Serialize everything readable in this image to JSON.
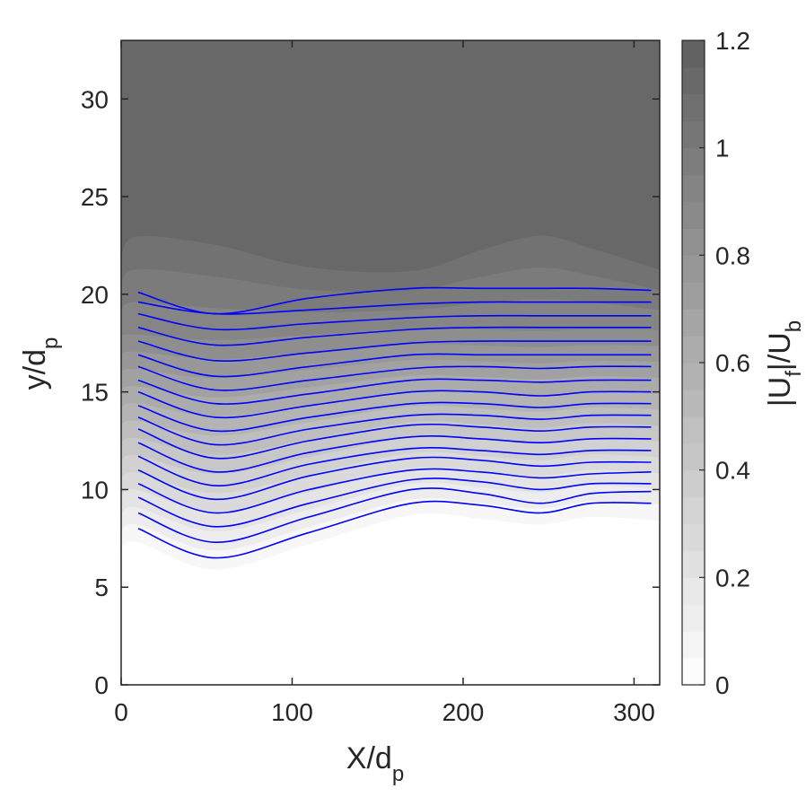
{
  "chart_data": {
    "type": "contour",
    "xlabel": {
      "main": "X/d",
      "sub": "p"
    },
    "ylabel": {
      "main": "y/d",
      "sub": "p"
    },
    "colorbar_label": {
      "pre": "|U",
      "sub1": "f",
      "mid": "|/U",
      "sub2": "b"
    },
    "xlim": [
      0,
      315
    ],
    "ylim": [
      0,
      33
    ],
    "xticks": [
      0,
      100,
      200,
      300
    ],
    "yticks": [
      0,
      5,
      10,
      15,
      20,
      25,
      30
    ],
    "colorbar": {
      "range": [
        0,
        1.2
      ],
      "ticks": [
        0,
        0.2,
        0.4,
        0.6,
        0.8,
        1,
        1.2
      ],
      "colormap": "gray",
      "light_color": "#ffffff",
      "dark_color": "#5f5f5f"
    },
    "streamline_color": "#0000ff",
    "streamline_x_range": [
      10,
      310
    ],
    "streamlines": {
      "x": [
        10,
        55,
        110,
        170,
        210,
        245,
        275,
        310
      ],
      "lines": [
        [
          8.0,
          6.5,
          7.8,
          9.3,
          9.2,
          8.8,
          9.3,
          9.3
        ],
        [
          8.8,
          7.3,
          8.6,
          10.0,
          9.8,
          9.3,
          9.8,
          9.9
        ],
        [
          9.6,
          8.1,
          9.3,
          10.5,
          10.4,
          10.0,
          10.3,
          10.3
        ],
        [
          10.3,
          8.8,
          10.0,
          11.0,
          10.9,
          10.6,
          10.8,
          10.9
        ],
        [
          11.0,
          9.5,
          10.7,
          11.6,
          11.5,
          11.2,
          11.4,
          11.4
        ],
        [
          11.7,
          10.2,
          11.3,
          12.1,
          12.0,
          11.8,
          12.0,
          12.0
        ],
        [
          12.4,
          10.9,
          11.9,
          12.7,
          12.6,
          12.4,
          12.6,
          12.6
        ],
        [
          13.1,
          11.6,
          12.5,
          13.3,
          13.2,
          13.0,
          13.2,
          13.2
        ],
        [
          13.7,
          12.3,
          13.1,
          13.8,
          13.8,
          13.6,
          13.8,
          13.8
        ],
        [
          14.3,
          13.0,
          13.7,
          14.4,
          14.4,
          14.2,
          14.4,
          14.4
        ],
        [
          15.0,
          13.7,
          14.3,
          15.0,
          15.0,
          14.8,
          15.0,
          15.0
        ],
        [
          15.6,
          14.4,
          14.9,
          15.6,
          15.6,
          15.5,
          15.6,
          15.6
        ],
        [
          16.3,
          15.1,
          15.6,
          16.2,
          16.3,
          16.2,
          16.3,
          16.3
        ],
        [
          16.9,
          15.8,
          16.3,
          16.9,
          16.9,
          16.9,
          16.9,
          16.9
        ],
        [
          17.6,
          16.6,
          17.0,
          17.5,
          17.6,
          17.6,
          17.6,
          17.6
        ],
        [
          18.3,
          17.4,
          17.8,
          18.2,
          18.3,
          18.3,
          18.3,
          18.3
        ],
        [
          19.0,
          18.2,
          18.5,
          18.8,
          18.9,
          18.9,
          18.9,
          18.9
        ],
        [
          19.6,
          19.0,
          19.2,
          19.5,
          19.6,
          19.6,
          19.6,
          19.6
        ],
        [
          20.1,
          19.0,
          19.8,
          20.3,
          20.3,
          20.3,
          20.3,
          20.2
        ]
      ]
    }
  }
}
